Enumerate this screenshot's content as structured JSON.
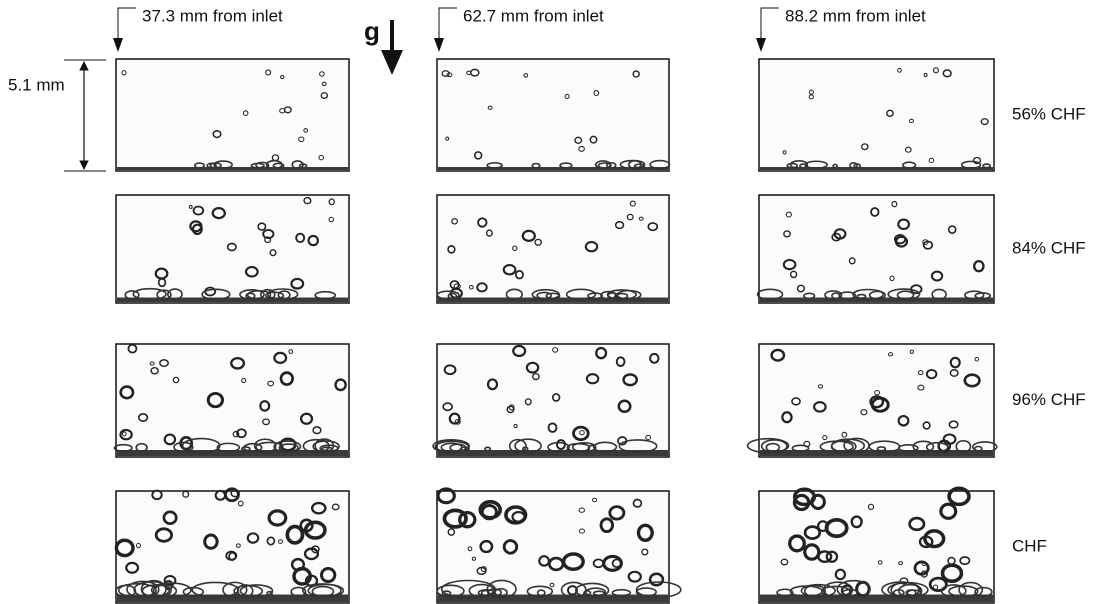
{
  "figure": {
    "columns": [
      "37.3 mm from inlet",
      "62.7 mm from inlet",
      "88.2 mm from inlet"
    ],
    "rows": [
      "56% CHF",
      "84% CHF",
      "96% CHF",
      "CHF"
    ],
    "gravity_label": "g",
    "height_label": "5.1 mm"
  }
}
